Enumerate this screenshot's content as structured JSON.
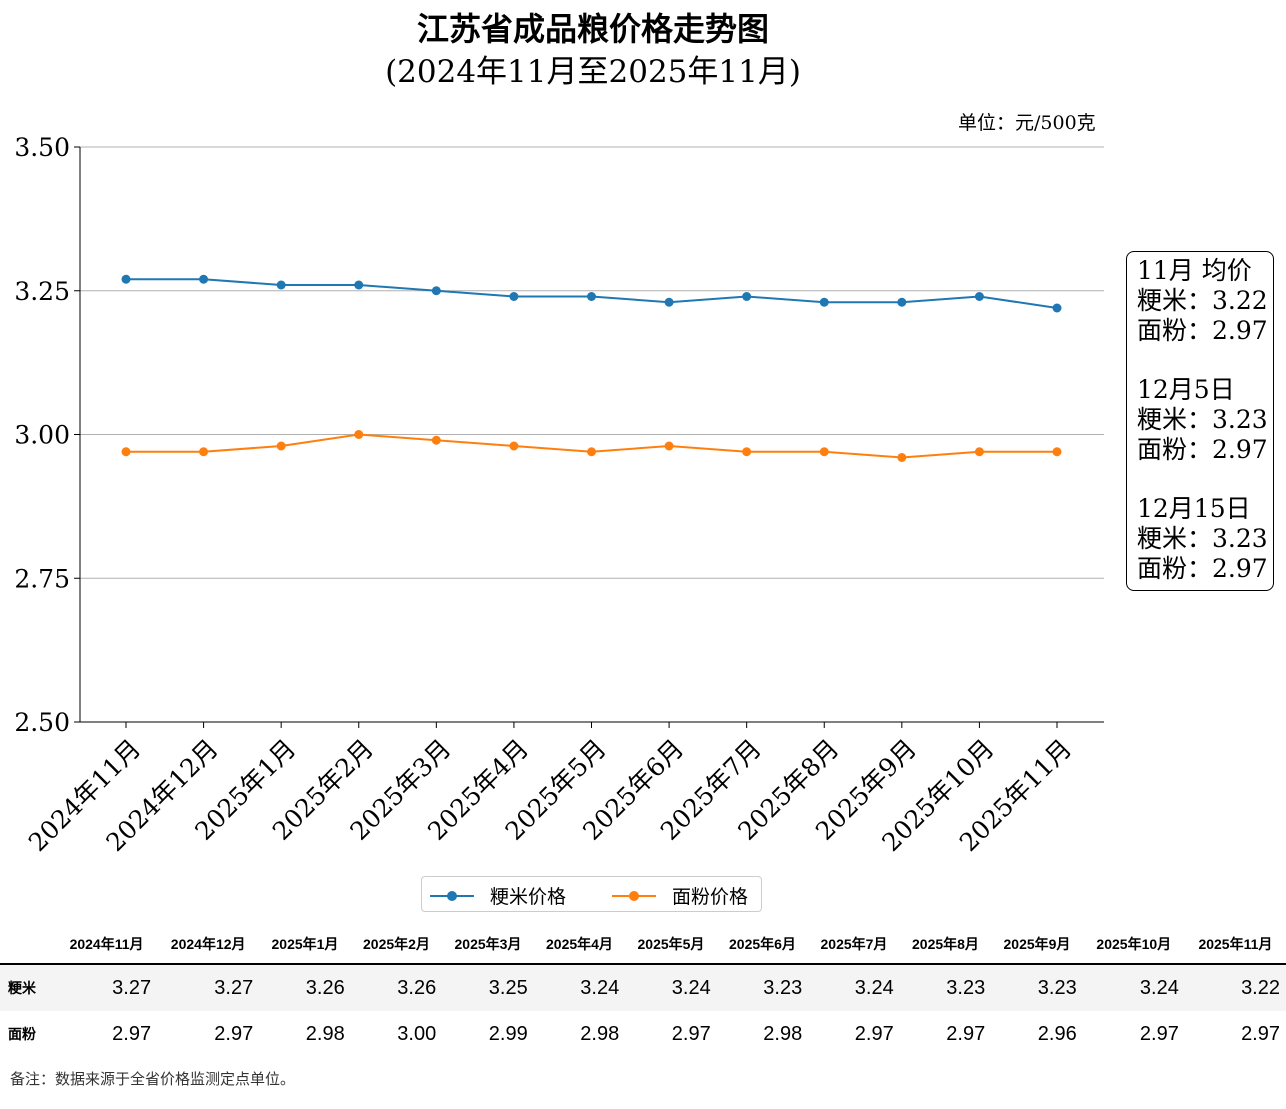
{
  "title_line1": "江苏省成品粮价格走势图",
  "title_line2": "(2024年11月至2025年11月)",
  "unit_label": "单位：元/500克",
  "chart_data": {
    "type": "line",
    "title": "江苏省成品粮价格走势图 (2024年11月至2025年11月)",
    "categories": [
      "2024年11月",
      "2024年12月",
      "2025年1月",
      "2025年2月",
      "2025年3月",
      "2025年4月",
      "2025年5月",
      "2025年6月",
      "2025年7月",
      "2025年8月",
      "2025年9月",
      "2025年10月",
      "2025年11月"
    ],
    "series": [
      {
        "name": "粳米价格",
        "color": "#1f77b4",
        "values": [
          3.27,
          3.27,
          3.26,
          3.26,
          3.25,
          3.24,
          3.24,
          3.23,
          3.24,
          3.23,
          3.23,
          3.24,
          3.22
        ]
      },
      {
        "name": "面粉价格",
        "color": "#ff7f0e",
        "values": [
          2.97,
          2.97,
          2.98,
          3.0,
          2.99,
          2.98,
          2.97,
          2.98,
          2.97,
          2.97,
          2.96,
          2.97,
          2.97
        ]
      }
    ],
    "ylim": [
      2.5,
      3.5
    ],
    "yticks": [
      "2.50",
      "2.75",
      "3.00",
      "3.25",
      "3.50"
    ],
    "grid": "horizontal",
    "legend": "bottom-center"
  },
  "annotation": {
    "blocks": [
      {
        "heading": "11月 均价",
        "rice": "粳米：3.22",
        "flour": "面粉：2.97"
      },
      {
        "heading": "12月5日",
        "rice": "粳米：3.23",
        "flour": "面粉：2.97"
      },
      {
        "heading": "12月15日",
        "rice": "粳米：3.23",
        "flour": "面粉：2.97"
      }
    ]
  },
  "table": {
    "headers": [
      "",
      "2024年11月",
      "2024年12月",
      "2025年1月",
      "2025年2月",
      "2025年3月",
      "2025年4月",
      "2025年5月",
      "2025年6月",
      "2025年7月",
      "2025年8月",
      "2025年9月",
      "2025年10月",
      "2025年11月"
    ],
    "rows": [
      {
        "label": "粳米",
        "values": [
          "3.27",
          "3.27",
          "3.26",
          "3.26",
          "3.25",
          "3.24",
          "3.24",
          "3.23",
          "3.24",
          "3.23",
          "3.23",
          "3.24",
          "3.22"
        ]
      },
      {
        "label": "面粉",
        "values": [
          "2.97",
          "2.97",
          "2.98",
          "3.00",
          "2.99",
          "2.98",
          "2.97",
          "2.98",
          "2.97",
          "2.97",
          "2.96",
          "2.97",
          "2.97"
        ]
      }
    ]
  },
  "footer_note": "备注：数据来源于全省价格监测定点单位。"
}
